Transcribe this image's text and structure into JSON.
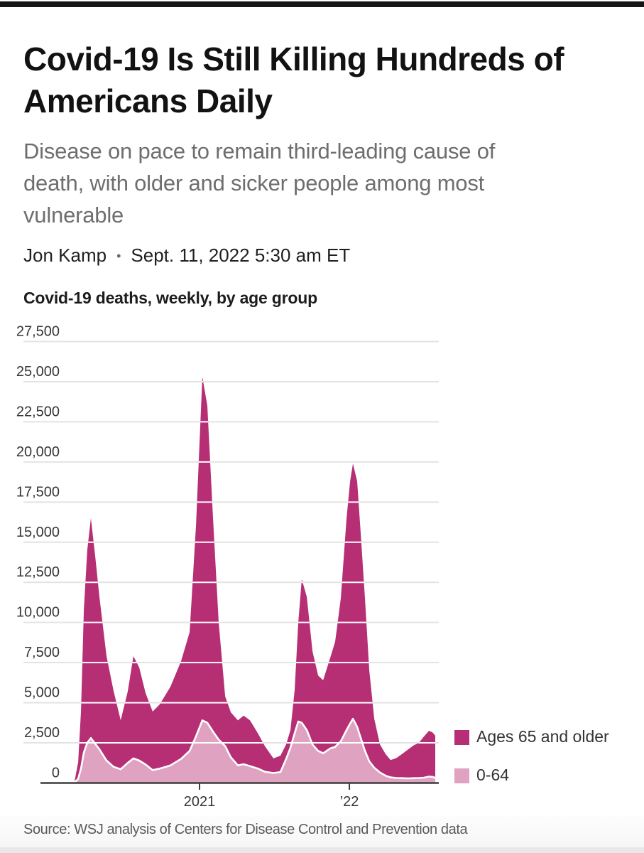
{
  "page": {
    "headline_lines": [
      "Covid-19 Is Still Killing Hundreds of",
      "Americans Daily"
    ],
    "dek_lines": [
      "Disease on pace to remain third-leading cause of",
      "death, with older and sicker people among most",
      "vulnerable"
    ],
    "byline": {
      "author": "Jon Kamp",
      "separator": "•",
      "timestamp": "Sept. 11, 2022 5:30 am ET"
    },
    "source_note": "Source: WSJ analysis of Centers for Disease Control and Prevention data"
  },
  "colors": {
    "ages_65_older": "#b62e74",
    "ages_0_64": "#dfa2c1",
    "gridline": "#e3e3e3",
    "gridline_over_area": "#ffffff",
    "axis": "#3c3c3c",
    "tick_label": "#363636",
    "legend_text": "#333333"
  },
  "chart_data": {
    "type": "area",
    "stacked": true,
    "title": "Covid-19 deaths, weekly, by age group",
    "xlabel": "",
    "ylabel": "",
    "ylim": [
      0,
      27500
    ],
    "yticks": [
      0,
      2500,
      5000,
      7500,
      10000,
      12500,
      15000,
      17500,
      20000,
      22500,
      25000,
      27500
    ],
    "x_unit": "decimal_year",
    "xlim": [
      2020.166,
      2022.573
    ],
    "xticks": [
      {
        "t": 2021,
        "label": "2021"
      },
      {
        "t": 2022,
        "label": "’22"
      }
    ],
    "grid": true,
    "legend_position": "bottom-right",
    "series": [
      {
        "name": "Ages 65 and older",
        "key": "ages_65_older",
        "color": "#b62e74",
        "stack": "top"
      },
      {
        "name": "0-64",
        "key": "ages_0_64",
        "color": "#dfa2c1",
        "stack": "bottom"
      }
    ],
    "points": {
      "t": [
        2020.166,
        2020.19,
        2020.209,
        2020.228,
        2020.251,
        2020.275,
        2020.303,
        2020.332,
        2020.379,
        2020.427,
        2020.474,
        2020.521,
        2020.559,
        2020.597,
        2020.64,
        2020.687,
        2020.735,
        2020.806,
        2020.877,
        2020.934,
        2020.976,
        2021.019,
        2021.052,
        2021.09,
        2021.128,
        2021.171,
        2021.209,
        2021.256,
        2021.294,
        2021.337,
        2021.389,
        2021.436,
        2021.493,
        2021.54,
        2021.578,
        2021.607,
        2021.635,
        2021.659,
        2021.682,
        2021.716,
        2021.754,
        2021.791,
        2021.825,
        2021.872,
        2021.905,
        2021.943,
        2021.981,
        2022.005,
        2022.024,
        2022.052,
        2022.076,
        2022.104,
        2022.133,
        2022.166,
        2022.204,
        2022.242,
        2022.275,
        2022.313,
        2022.351,
        2022.393,
        2022.431,
        2022.464,
        2022.498,
        2022.531,
        2022.555,
        2022.573
      ],
      "ages_65_older": [
        70,
        1040,
        3600,
        8900,
        12000,
        13700,
        11750,
        9500,
        6500,
        4700,
        3040,
        4450,
        6370,
        5800,
        4450,
        3650,
        4000,
        4900,
        6100,
        7400,
        13100,
        21400,
        19750,
        13300,
        7300,
        3100,
        2800,
        2800,
        3030,
        2850,
        2200,
        1600,
        910,
        1020,
        900,
        1100,
        2700,
        6170,
        8950,
        8300,
        5800,
        4700,
        4550,
        5650,
        6550,
        8900,
        13200,
        15100,
        15900,
        15300,
        12700,
        9500,
        5650,
        3050,
        1750,
        1350,
        1080,
        1240,
        1500,
        1810,
        2050,
        2190,
        2570,
        2850,
        2770,
        2630
      ],
      "ages_0_64": [
        30,
        260,
        900,
        1900,
        2500,
        2800,
        2450,
        2100,
        1400,
        1000,
        860,
        1250,
        1530,
        1400,
        1150,
        800,
        900,
        1100,
        1500,
        2000,
        2900,
        3900,
        3750,
        3200,
        2700,
        2300,
        1600,
        1100,
        1170,
        1050,
        900,
        700,
        620,
        680,
        1500,
        2200,
        3100,
        3830,
        3750,
        3300,
        2400,
        2000,
        1850,
        2150,
        2250,
        2600,
        3300,
        3700,
        4000,
        3500,
        2800,
        2000,
        1350,
        950,
        650,
        450,
        350,
        310,
        300,
        290,
        300,
        310,
        330,
        400,
        380,
        320
      ]
    }
  }
}
